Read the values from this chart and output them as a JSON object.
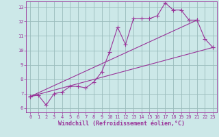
{
  "xlabel": "Windchill (Refroidissement éolien,°C)",
  "bg_color": "#cce8e8",
  "grid_color": "#99bbbb",
  "line_color": "#993399",
  "xlim": [
    -0.5,
    23.5
  ],
  "ylim": [
    5.7,
    13.4
  ],
  "xticks": [
    0,
    1,
    2,
    3,
    4,
    5,
    6,
    7,
    8,
    9,
    10,
    11,
    12,
    13,
    14,
    15,
    16,
    17,
    18,
    19,
    20,
    21,
    22,
    23
  ],
  "yticks": [
    6,
    7,
    8,
    9,
    10,
    11,
    12,
    13
  ],
  "line1_x": [
    0,
    1,
    2,
    3,
    4,
    5,
    6,
    7,
    8,
    9,
    10,
    11,
    12,
    13,
    14,
    15,
    16,
    17,
    18,
    19,
    20,
    21,
    22,
    23
  ],
  "line1_y": [
    6.8,
    6.9,
    6.2,
    7.0,
    7.1,
    7.5,
    7.5,
    7.4,
    7.8,
    8.5,
    9.9,
    11.6,
    10.4,
    12.2,
    12.2,
    12.2,
    12.4,
    13.3,
    12.8,
    12.8,
    12.1,
    12.1,
    10.8,
    10.2
  ],
  "line2_x": [
    0,
    21
  ],
  "line2_y": [
    6.8,
    12.1
  ],
  "line3_x": [
    0,
    23
  ],
  "line3_y": [
    6.8,
    10.2
  ],
  "marker": "+",
  "markersize": 4,
  "linewidth": 0.8
}
